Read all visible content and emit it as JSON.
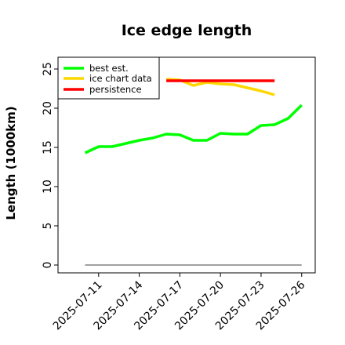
{
  "chart_data": {
    "type": "line",
    "title": "Ice edge length",
    "xlabel": "",
    "ylabel": "Length (1000km)",
    "ylim": [
      -1,
      26.5
    ],
    "xlim": [
      "2025-07-08",
      "2025-07-27"
    ],
    "x_ticks": [
      "2025-07-11",
      "2025-07-14",
      "2025-07-17",
      "2025-07-20",
      "2025-07-23",
      "2025-07-26"
    ],
    "y_ticks": [
      0,
      5,
      10,
      15,
      20,
      25
    ],
    "grid": false,
    "legend_position": "top-left",
    "series": [
      {
        "name": "best est.",
        "color": "#00ff00",
        "x": [
          "2025-07-10",
          "2025-07-11",
          "2025-07-12",
          "2025-07-13",
          "2025-07-14",
          "2025-07-15",
          "2025-07-16",
          "2025-07-17",
          "2025-07-18",
          "2025-07-19",
          "2025-07-20",
          "2025-07-21",
          "2025-07-22",
          "2025-07-23",
          "2025-07-24",
          "2025-07-25",
          "2025-07-26"
        ],
        "values": [
          14.3,
          15.1,
          15.1,
          15.5,
          15.9,
          16.2,
          16.7,
          16.6,
          15.9,
          15.9,
          16.8,
          16.7,
          16.7,
          17.8,
          17.9,
          18.7,
          20.4
        ]
      },
      {
        "name": "ice chart data",
        "color": "#ffd700",
        "x": [
          "2025-07-16",
          "2025-07-17",
          "2025-07-18",
          "2025-07-19",
          "2025-07-20",
          "2025-07-21",
          "2025-07-22",
          "2025-07-23",
          "2025-07-24"
        ],
        "values": [
          23.7,
          23.6,
          22.9,
          23.3,
          23.1,
          23.0,
          22.6,
          22.2,
          21.7
        ]
      },
      {
        "name": "persistence",
        "color": "#ff0000",
        "x": [
          "2025-07-16",
          "2025-07-24"
        ],
        "values": [
          23.5,
          23.5
        ]
      },
      {
        "name": "",
        "color": "#808080",
        "x": [
          "2025-07-10",
          "2025-07-26"
        ],
        "values": [
          0,
          0
        ]
      }
    ]
  }
}
